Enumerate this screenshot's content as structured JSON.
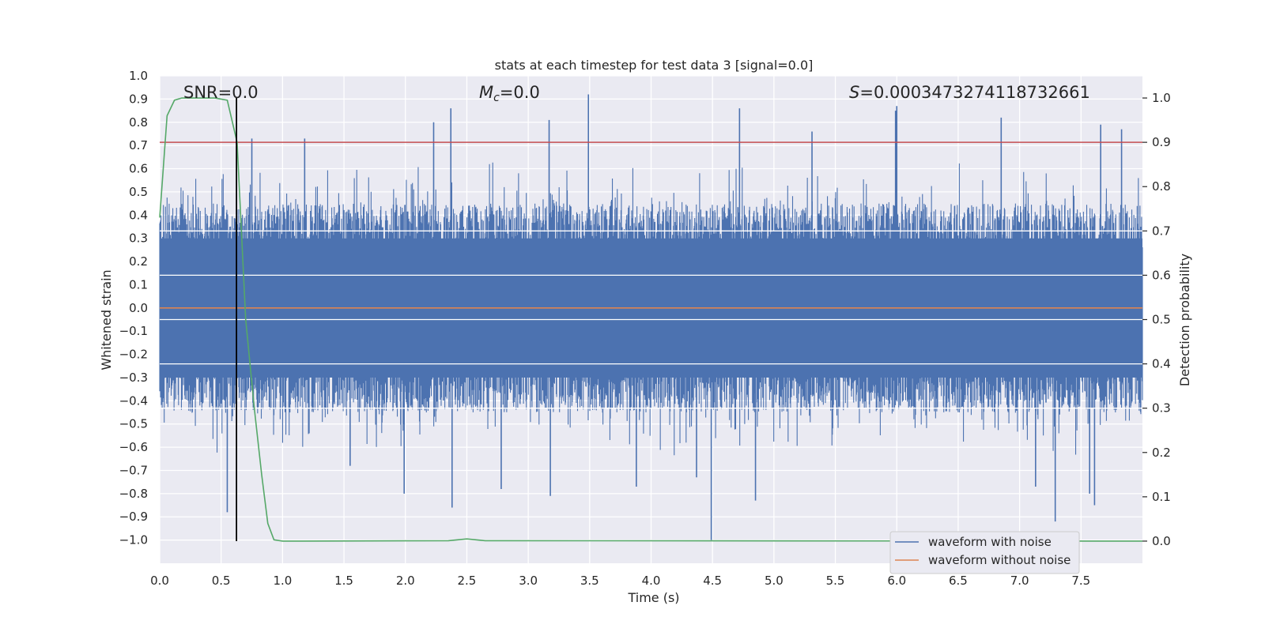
{
  "chart_data": {
    "type": "line",
    "title": "stats at each timestep for test data 3 [signal=0.0]",
    "xlabel": "Time (s)",
    "ylabel": "Whitened strain",
    "y2label": "Detection probability",
    "xlim": [
      0.0,
      8.0
    ],
    "ylim": [
      -1.1,
      1.0
    ],
    "y2lim": [
      -0.05,
      1.05
    ],
    "xticks": [
      "0.0",
      "0.5",
      "1.0",
      "1.5",
      "2.0",
      "2.5",
      "3.0",
      "3.5",
      "4.0",
      "4.5",
      "5.0",
      "5.5",
      "6.0",
      "6.5",
      "7.0",
      "7.5"
    ],
    "yticks": [
      "1.0",
      "0.9",
      "0.8",
      "0.7",
      "0.6",
      "0.5",
      "0.4",
      "0.3",
      "0.2",
      "0.1",
      "0.0",
      "−0.1",
      "−0.2",
      "−0.3",
      "−0.4",
      "−0.5",
      "−0.6",
      "−0.7",
      "−0.8",
      "−0.9",
      "−1.0"
    ],
    "y2ticks": [
      "1.0",
      "0.9",
      "0.8",
      "0.7",
      "0.6",
      "0.5",
      "0.4",
      "0.3",
      "0.2",
      "0.1",
      "0.0"
    ],
    "grid": true,
    "legend_position": "bottom-right",
    "annotations": {
      "snr": "SNR=0.0",
      "mc_symbol": "M",
      "mc_sub": "c",
      "mc_value": "=0.0",
      "s_symbol": "S",
      "s_value": "=0.0003473274118732661"
    },
    "series": [
      {
        "name": "waveform with noise",
        "axis": "left",
        "color": "#4c72b0",
        "kind": "noise",
        "envelope_typical": 0.45,
        "peaks": [
          {
            "x": 0.55,
            "y": -0.88
          },
          {
            "x": 0.75,
            "y": 0.73
          },
          {
            "x": 1.18,
            "y": 0.73
          },
          {
            "x": 1.55,
            "y": -0.68
          },
          {
            "x": 1.99,
            "y": -0.8
          },
          {
            "x": 2.23,
            "y": 0.8
          },
          {
            "x": 2.37,
            "y": 0.86
          },
          {
            "x": 2.38,
            "y": -0.86
          },
          {
            "x": 2.78,
            "y": -0.78
          },
          {
            "x": 3.17,
            "y": 0.81
          },
          {
            "x": 3.18,
            "y": -0.81
          },
          {
            "x": 3.49,
            "y": 0.92
          },
          {
            "x": 3.88,
            "y": -0.77
          },
          {
            "x": 4.37,
            "y": -0.73
          },
          {
            "x": 4.49,
            "y": -1.0
          },
          {
            "x": 4.72,
            "y": 0.86
          },
          {
            "x": 4.85,
            "y": -0.83
          },
          {
            "x": 5.31,
            "y": 0.76
          },
          {
            "x": 5.99,
            "y": 0.85
          },
          {
            "x": 6.0,
            "y": 0.87
          },
          {
            "x": 6.85,
            "y": 0.82
          },
          {
            "x": 7.13,
            "y": -0.77
          },
          {
            "x": 7.29,
            "y": -0.92
          },
          {
            "x": 7.57,
            "y": -0.8
          },
          {
            "x": 7.61,
            "y": -0.85
          },
          {
            "x": 7.66,
            "y": 0.79
          },
          {
            "x": 7.83,
            "y": 0.77
          }
        ]
      },
      {
        "name": "waveform without noise",
        "axis": "left",
        "color": "#dd8452",
        "x": [
          0.0,
          8.0
        ],
        "y": [
          0.0,
          0.0
        ]
      },
      {
        "name": "",
        "axis": "right",
        "color": "#55a868",
        "x": [
          0.0,
          0.06,
          0.12,
          0.18,
          0.3,
          0.45,
          0.55,
          0.63,
          0.7,
          0.77,
          0.83,
          0.88,
          0.93,
          1.0,
          2.35,
          2.5,
          2.65,
          8.0
        ],
        "y": [
          0.73,
          0.96,
          0.995,
          1.0,
          1.0,
          1.0,
          0.995,
          0.9,
          0.5,
          0.3,
          0.15,
          0.04,
          0.003,
          0.0,
          0.001,
          0.005,
          0.001,
          0.0
        ]
      }
    ],
    "threshold": {
      "axis": "right",
      "value": 0.9,
      "color": "#c44e52"
    },
    "marker": {
      "x": 0.625,
      "y_from": 0.0,
      "y_to": 1.0,
      "color": "#000000"
    }
  }
}
